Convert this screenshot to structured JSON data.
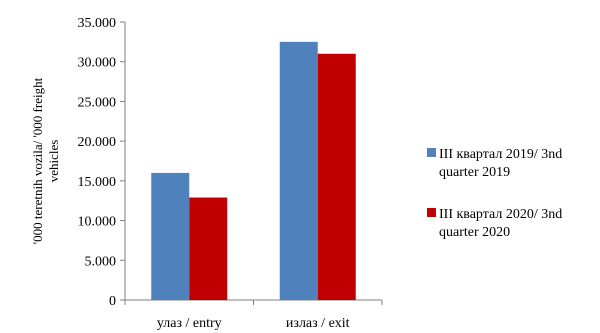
{
  "chart_data": {
    "type": "bar",
    "title": "",
    "xlabel": "",
    "ylabel_lines": [
      "'000 teretnih vozila/ '000 freight",
      "vehicles"
    ],
    "categories": [
      "улаз / entry",
      "излаз / exit"
    ],
    "series": [
      {
        "name_lines": [
          "III квартал 2019/ 3nd",
          "quarter 2019"
        ],
        "values": [
          16000,
          32500
        ],
        "color": "#4F81BD"
      },
      {
        "name_lines": [
          "III квартал 2020/ 3nd",
          "quarter 2020"
        ],
        "values": [
          12900,
          31000
        ],
        "color": "#C00000"
      }
    ],
    "ylim": [
      0,
      35000
    ],
    "yticks": [
      0,
      5000,
      10000,
      15000,
      20000,
      25000,
      30000,
      35000
    ],
    "ytick_labels": [
      "0",
      "5.000",
      "10.000",
      "15.000",
      "20.000",
      "25.000",
      "30.000",
      "35.000"
    ],
    "grid": false,
    "legend_position": "right"
  }
}
